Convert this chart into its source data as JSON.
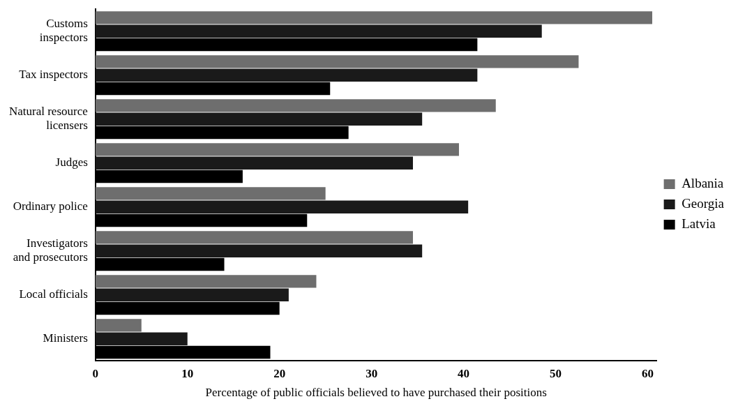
{
  "chart_data": {
    "type": "bar",
    "orientation": "horizontal",
    "xlabel": "Percentage of public officials believed to have purchased their positions",
    "categories": [
      "Customs\ninspectors",
      "Tax inspectors",
      "Natural resource\nlicensers",
      "Judges",
      "Ordinary police",
      "Investigators\nand prosecutors",
      "Local officials",
      "Ministers"
    ],
    "series": [
      {
        "name": "Albania",
        "color": "#6e6e6e",
        "values": [
          60.5,
          52.5,
          43.5,
          39.5,
          25,
          34.5,
          24,
          5
        ]
      },
      {
        "name": "Georgia",
        "color": "#1a1a1a",
        "values": [
          48.5,
          41.5,
          35.5,
          34.5,
          40.5,
          35.5,
          21,
          10
        ]
      },
      {
        "name": "Latvia",
        "color": "#000000",
        "values": [
          41.5,
          25.5,
          27.5,
          16,
          23,
          14,
          20,
          19
        ]
      }
    ],
    "xlim": [
      0,
      61
    ],
    "xticks": [
      0,
      10,
      20,
      30,
      40,
      50,
      60
    ],
    "grid": false,
    "legend": "right"
  }
}
